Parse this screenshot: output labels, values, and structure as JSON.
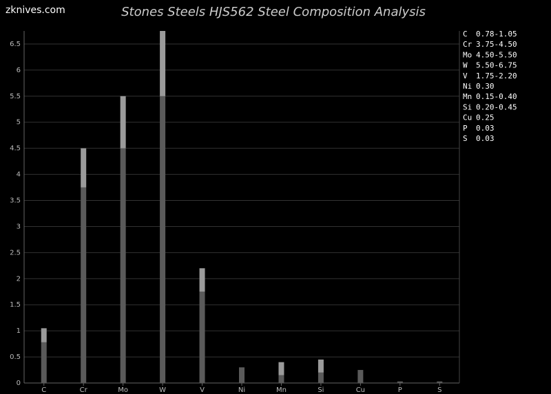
{
  "brand": "zknives.com",
  "chart_data": {
    "type": "range-bar",
    "title": "Stones Steels HJS562 Steel Composition Analysis",
    "categories": [
      "C",
      "Cr",
      "Mo",
      "W",
      "V",
      "Ni",
      "Mn",
      "Si",
      "Cu",
      "P",
      "S"
    ],
    "low": [
      0.78,
      3.75,
      4.5,
      5.5,
      1.75,
      0.3,
      0.15,
      0.2,
      0.25,
      0.03,
      0.03
    ],
    "high": [
      1.05,
      4.5,
      5.5,
      6.75,
      2.2,
      null,
      0.4,
      0.45,
      null,
      null,
      null
    ],
    "value_labels": [
      "0.78-1.05",
      "3.75-4.50",
      "4.50-5.50",
      "5.50-6.75",
      "1.75-2.20",
      "0.30",
      "0.15-0.40",
      "0.20-0.45",
      "0.25",
      "0.03",
      "0.03"
    ],
    "low_color": "#5a5a5a",
    "high_color": "#9a9a9a",
    "ylim": [
      0,
      6.75
    ],
    "yticks": [
      0,
      0.5,
      1,
      1.5,
      2,
      2.5,
      3,
      3.5,
      4,
      4.5,
      5,
      5.5,
      6,
      6.5
    ],
    "grid": true
  }
}
